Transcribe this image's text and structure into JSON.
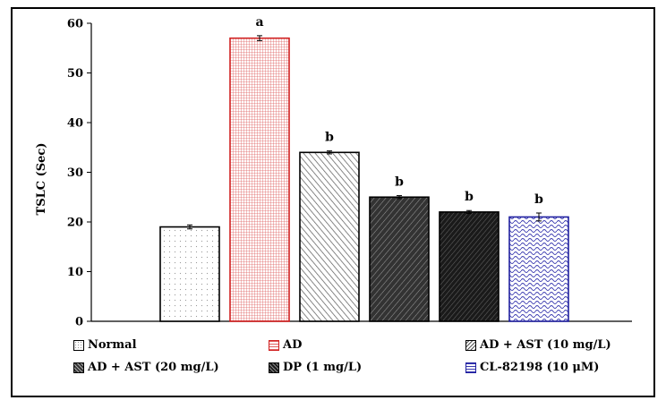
{
  "chart_data": {
    "type": "bar",
    "title": "",
    "xlabel": "",
    "ylabel": "TSLC (Sec)",
    "ylim": [
      0,
      60
    ],
    "yticks": [
      0,
      10,
      20,
      30,
      40,
      50,
      60
    ],
    "categories": [
      "Normal",
      "AD",
      "AD + AST (10 mg/L)",
      "AD + AST (20 mg/L)",
      "DP (1 mg/L)",
      "CL-82198 (10 μM)"
    ],
    "values": [
      19,
      57,
      34,
      25,
      22,
      21
    ],
    "errors": [
      0.4,
      0.5,
      0.3,
      0.3,
      0.3,
      0.8
    ],
    "significance": [
      "",
      "a",
      "b",
      "b",
      "b",
      "b"
    ],
    "legend": [
      {
        "label": "Normal",
        "pattern": "dots",
        "color": "#888888"
      },
      {
        "label": "AD",
        "pattern": "red-grid",
        "color": "#e03030"
      },
      {
        "label": "AD + AST (10 mg/L)",
        "pattern": "light-diagonal",
        "color": "#555555"
      },
      {
        "label": "AD + AST (20 mg/L)",
        "pattern": "dark-diagonal",
        "color": "#222222"
      },
      {
        "label": "DP (1 mg/L)",
        "pattern": "dense-diagonal",
        "color": "#111111"
      },
      {
        "label": "CL-82198 (10 μM)",
        "pattern": "blue-wave",
        "color": "#3030a0"
      }
    ],
    "legend_position": "bottom",
    "grid": false
  }
}
